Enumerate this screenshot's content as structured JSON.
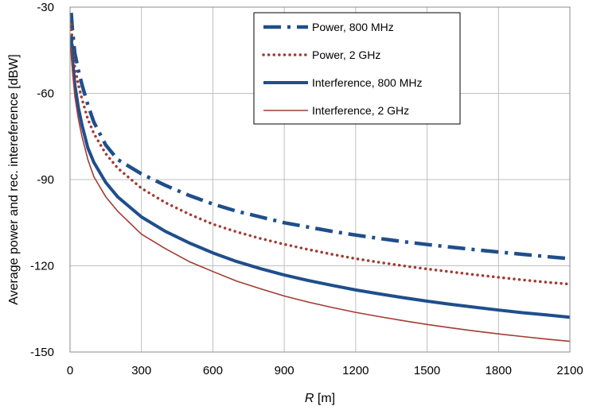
{
  "chart_data": {
    "type": "line",
    "xlabel_var": "R",
    "xlabel_unit": " [m]",
    "ylabel": "Average power and rec. intereference [dBW]",
    "xlim": [
      0,
      2100
    ],
    "ylim": [
      -150,
      -30
    ],
    "xticks": [
      0,
      300,
      600,
      900,
      1200,
      1500,
      1800,
      2100
    ],
    "yticks": [
      -150,
      -120,
      -90,
      -60,
      -30
    ],
    "grid": true,
    "legend_position": "top-right",
    "x": [
      5,
      10,
      20,
      35,
      50,
      75,
      100,
      150,
      200,
      300,
      400,
      500,
      600,
      700,
      800,
      900,
      1000,
      1100,
      1200,
      1300,
      1400,
      1500,
      1600,
      1700,
      1800,
      1900,
      2000,
      2100
    ],
    "series": [
      {
        "name": "Power, 800 MHz",
        "color": "#1f4e8c",
        "style": "dashdot",
        "values": [
          -32,
          -38,
          -46,
          -52,
          -57,
          -64,
          -70,
          -78,
          -83,
          -88,
          -92,
          -95.5,
          -98.5,
          -101,
          -103,
          -105,
          -106.5,
          -108,
          -109.3,
          -110.5,
          -111.6,
          -112.6,
          -113.5,
          -114.4,
          -115.2,
          -116,
          -116.8,
          -117.5
        ]
      },
      {
        "name": "Power, 2 GHz",
        "color": "#a03c33",
        "style": "dotted",
        "values": [
          -36,
          -43,
          -51,
          -57,
          -62,
          -69,
          -74,
          -81,
          -86,
          -93,
          -98,
          -102,
          -105.5,
          -108.2,
          -110.5,
          -112.5,
          -114.3,
          -116,
          -117.5,
          -118.8,
          -120,
          -121.1,
          -122.1,
          -123.1,
          -124,
          -124.9,
          -125.7,
          -126.4
        ]
      },
      {
        "name": "Interference, 800 MHz",
        "color": "#1f4e8c",
        "style": "solid-thick",
        "values": [
          -40,
          -48,
          -57,
          -65,
          -71,
          -79,
          -84,
          -91,
          -96,
          -103,
          -108,
          -112,
          -115.5,
          -118.5,
          -121,
          -123.2,
          -125.1,
          -126.8,
          -128.4,
          -129.8,
          -131.1,
          -132.3,
          -133.4,
          -134.4,
          -135.4,
          -136.3,
          -137.1,
          -137.9
        ]
      },
      {
        "name": "Interference, 2 GHz",
        "color": "#a03c33",
        "style": "solid-thin",
        "values": [
          -44,
          -52,
          -61,
          -69,
          -75,
          -83,
          -89,
          -96,
          -101,
          -109,
          -114,
          -118.5,
          -122,
          -125.3,
          -128,
          -130.5,
          -132.6,
          -134.5,
          -136.2,
          -137.7,
          -139.1,
          -140.4,
          -141.6,
          -142.7,
          -143.7,
          -144.6,
          -145.5,
          -146.3
        ]
      }
    ]
  }
}
